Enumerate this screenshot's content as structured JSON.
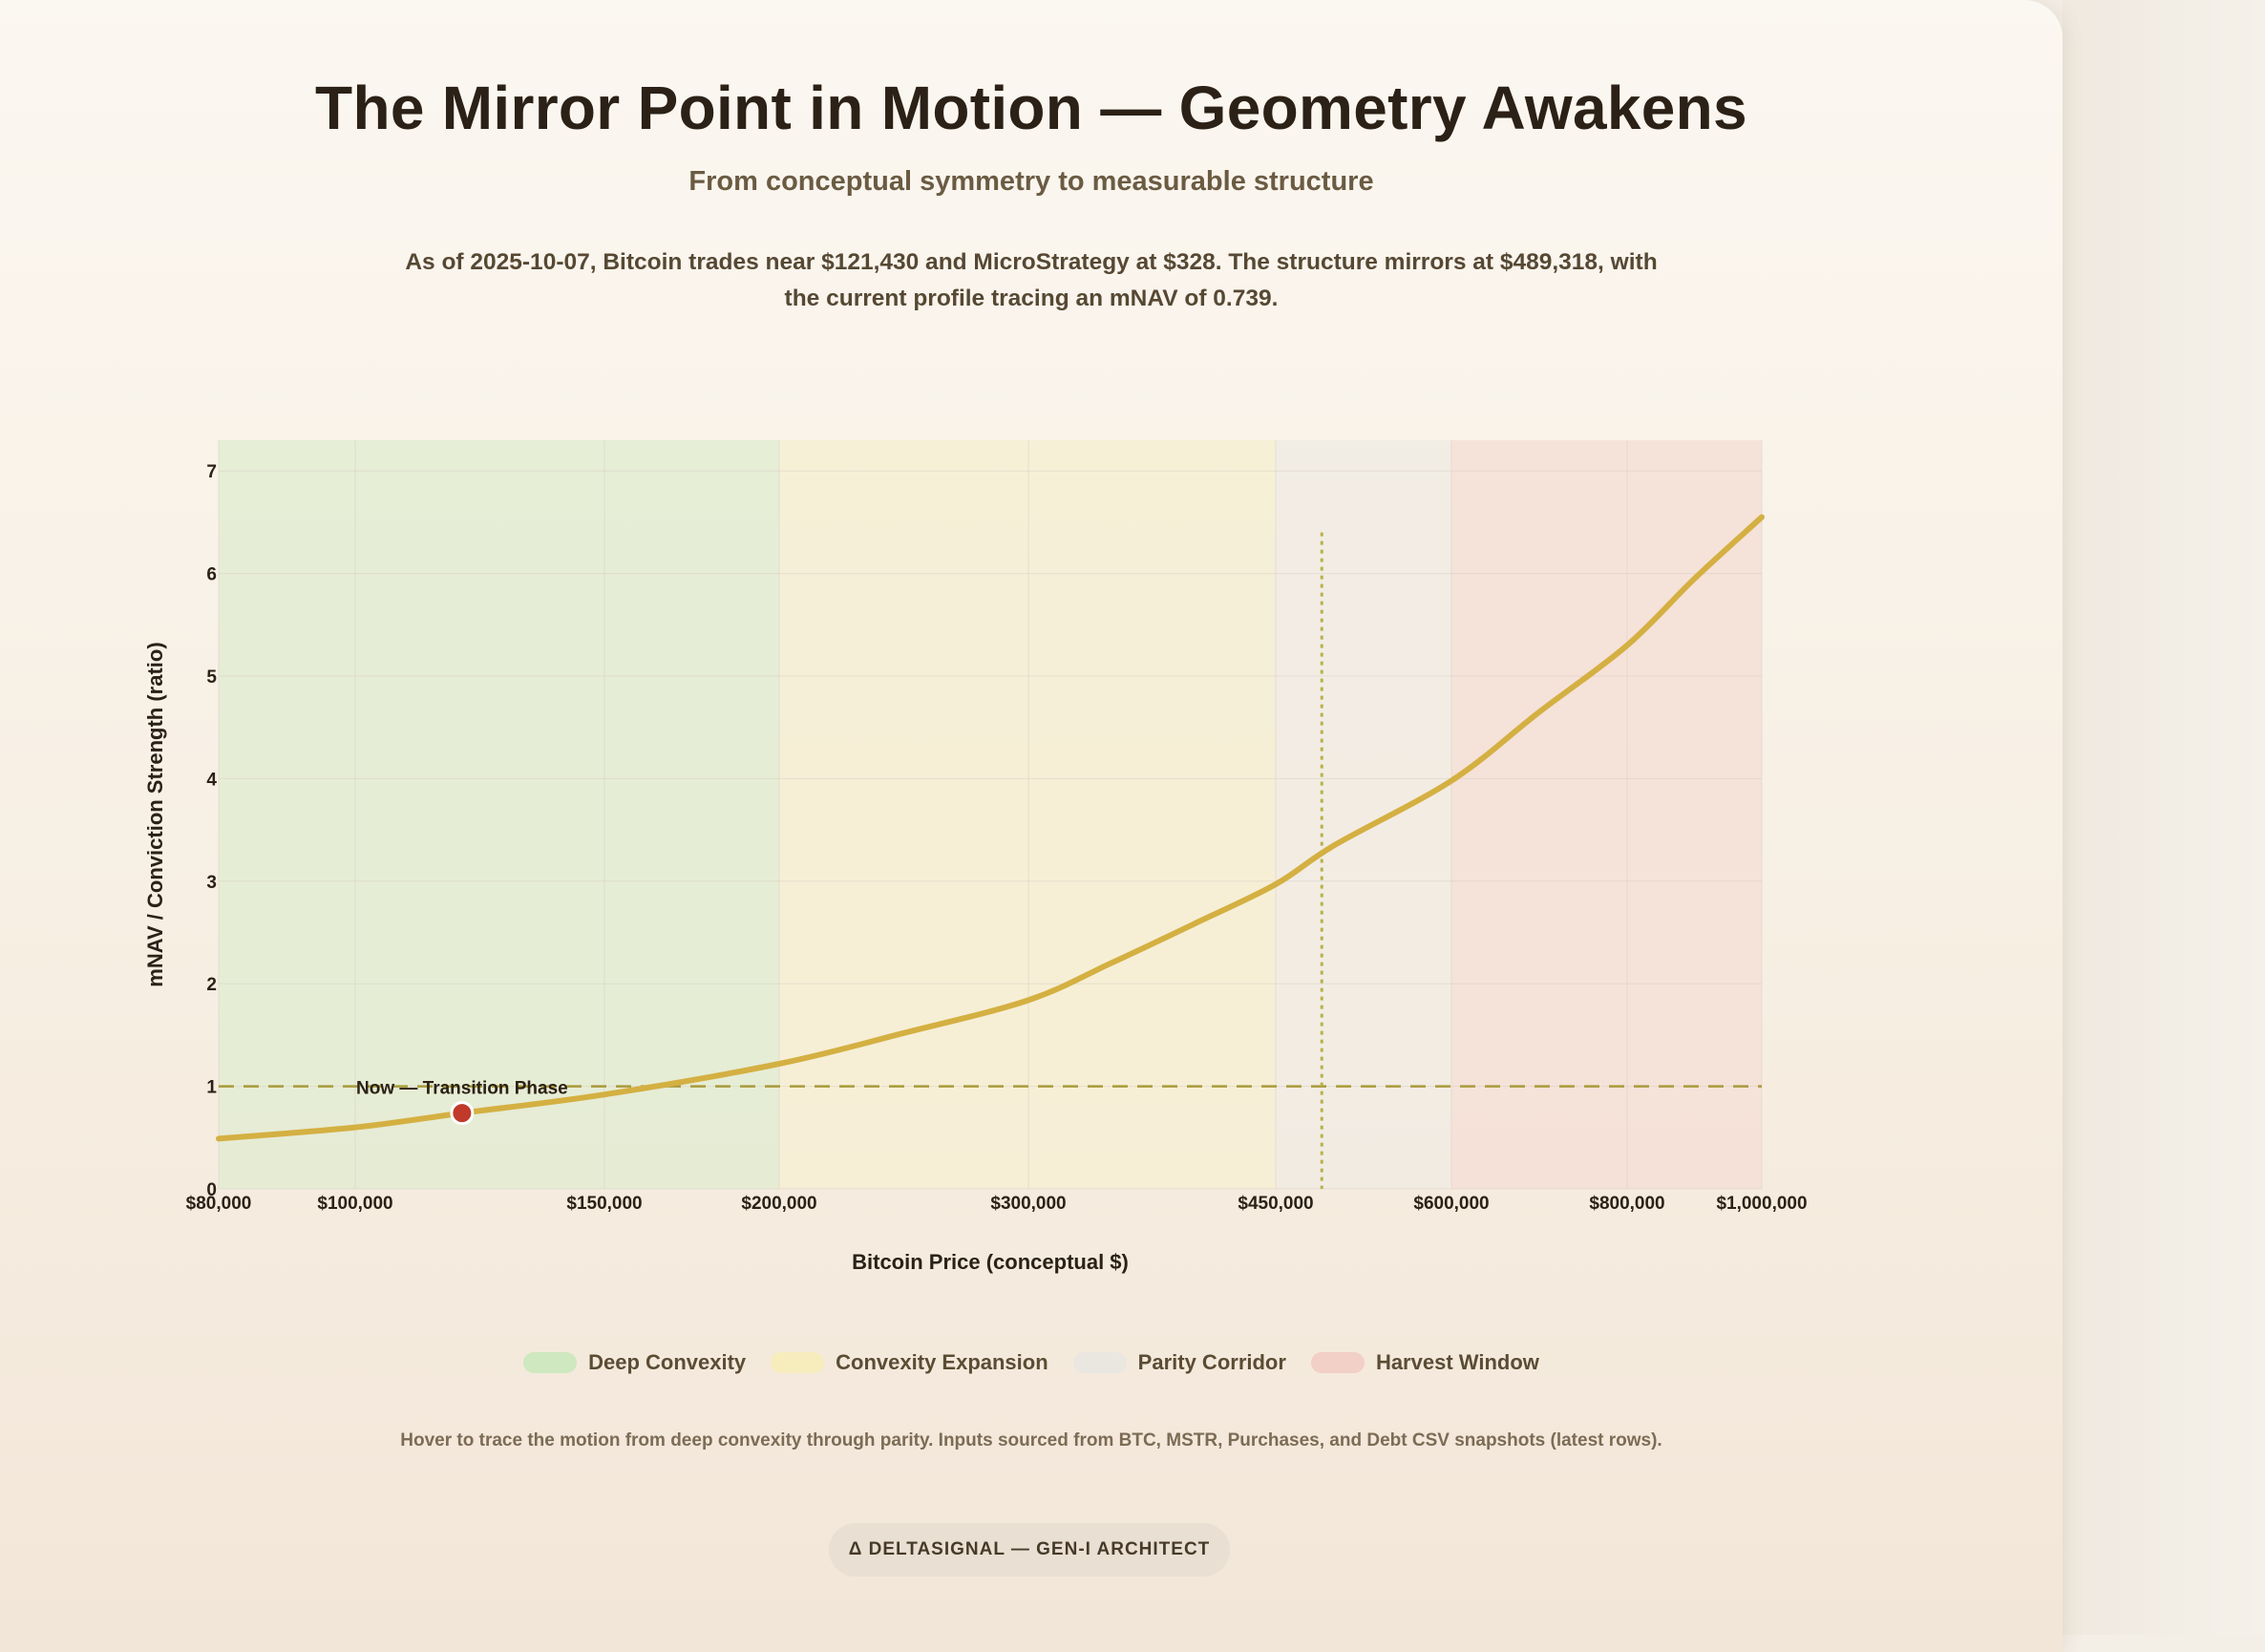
{
  "header": {
    "title": "The Mirror Point in Motion — Geometry Awakens",
    "subtitle": "From conceptual symmetry to measurable structure",
    "description": "As of 2025-10-07, Bitcoin trades near $121,430 and MicroStrategy at $328. The structure mirrors at $489,318, with the current profile tracing an mNAV of 0.739."
  },
  "chart_data": {
    "type": "line",
    "xlabel": "Bitcoin Price (conceptual $)",
    "ylabel": "mNAV / Conviction Strength (ratio)",
    "ylim": [
      0,
      7.3
    ],
    "y_ticks": [
      "0",
      "1",
      "2",
      "3",
      "4",
      "5",
      "6",
      "7"
    ],
    "x_ticks": [
      {
        "value": 80000,
        "label": "$80,000"
      },
      {
        "value": 100000,
        "label": "$100,000"
      },
      {
        "value": 150000,
        "label": "$150,000"
      },
      {
        "value": 200000,
        "label": "$200,000"
      },
      {
        "value": 300000,
        "label": "$300,000"
      },
      {
        "value": 450000,
        "label": "$450,000"
      },
      {
        "value": 600000,
        "label": "$600,000"
      },
      {
        "value": 800000,
        "label": "$800,000"
      },
      {
        "value": 1000000,
        "label": "$1,000,000"
      }
    ],
    "series": [
      {
        "name": "",
        "color": "#d4b042",
        "points": [
          [
            80000,
            0.49
          ],
          [
            100000,
            0.6
          ],
          [
            121430,
            0.739
          ],
          [
            150000,
            0.92
          ],
          [
            200000,
            1.22
          ],
          [
            250000,
            1.52
          ],
          [
            300000,
            1.84
          ],
          [
            350000,
            2.2
          ],
          [
            400000,
            2.58
          ],
          [
            450000,
            2.97
          ],
          [
            500000,
            3.35
          ],
          [
            600000,
            3.98
          ],
          [
            700000,
            4.65
          ],
          [
            800000,
            5.3
          ],
          [
            900000,
            5.95
          ],
          [
            1000000,
            6.55
          ]
        ]
      }
    ],
    "zones": [
      {
        "name": "Deep Convexity",
        "from": 80000,
        "to": 200000,
        "color": "#e3ecd2"
      },
      {
        "name": "Convexity Expansion",
        "from": 200000,
        "to": 450000,
        "color": "#f6efd3"
      },
      {
        "name": "Parity Corridor",
        "from": 450000,
        "to": 600000,
        "color": "#f1ebe3"
      },
      {
        "name": "Harvest Window",
        "from": 600000,
        "to": 1000000,
        "color": "#f4dfd6"
      }
    ],
    "parity_line": {
      "y": 1
    },
    "mirror_point": {
      "x": 489318
    },
    "current_point": {
      "x": 121430,
      "y": 0.739,
      "label": "Now — Transition Phase",
      "color": "#c0392b"
    },
    "grid": true
  },
  "legend": [
    {
      "label": "Deep Convexity",
      "color": "#cfe8bf"
    },
    {
      "label": "Convexity Expansion",
      "color": "#f7ecbc"
    },
    {
      "label": "Parity Corridor",
      "color": "#eae6e0"
    },
    {
      "label": "Harvest Window",
      "color": "#f2cfc7"
    }
  ],
  "footnote": "Hover to trace the motion from deep convexity through parity. Inputs sourced from BTC, MSTR, Purchases, and Debt CSV snapshots (latest rows).",
  "badge": "Δ DELTASIGNAL — GEN-I ARCHITECT"
}
